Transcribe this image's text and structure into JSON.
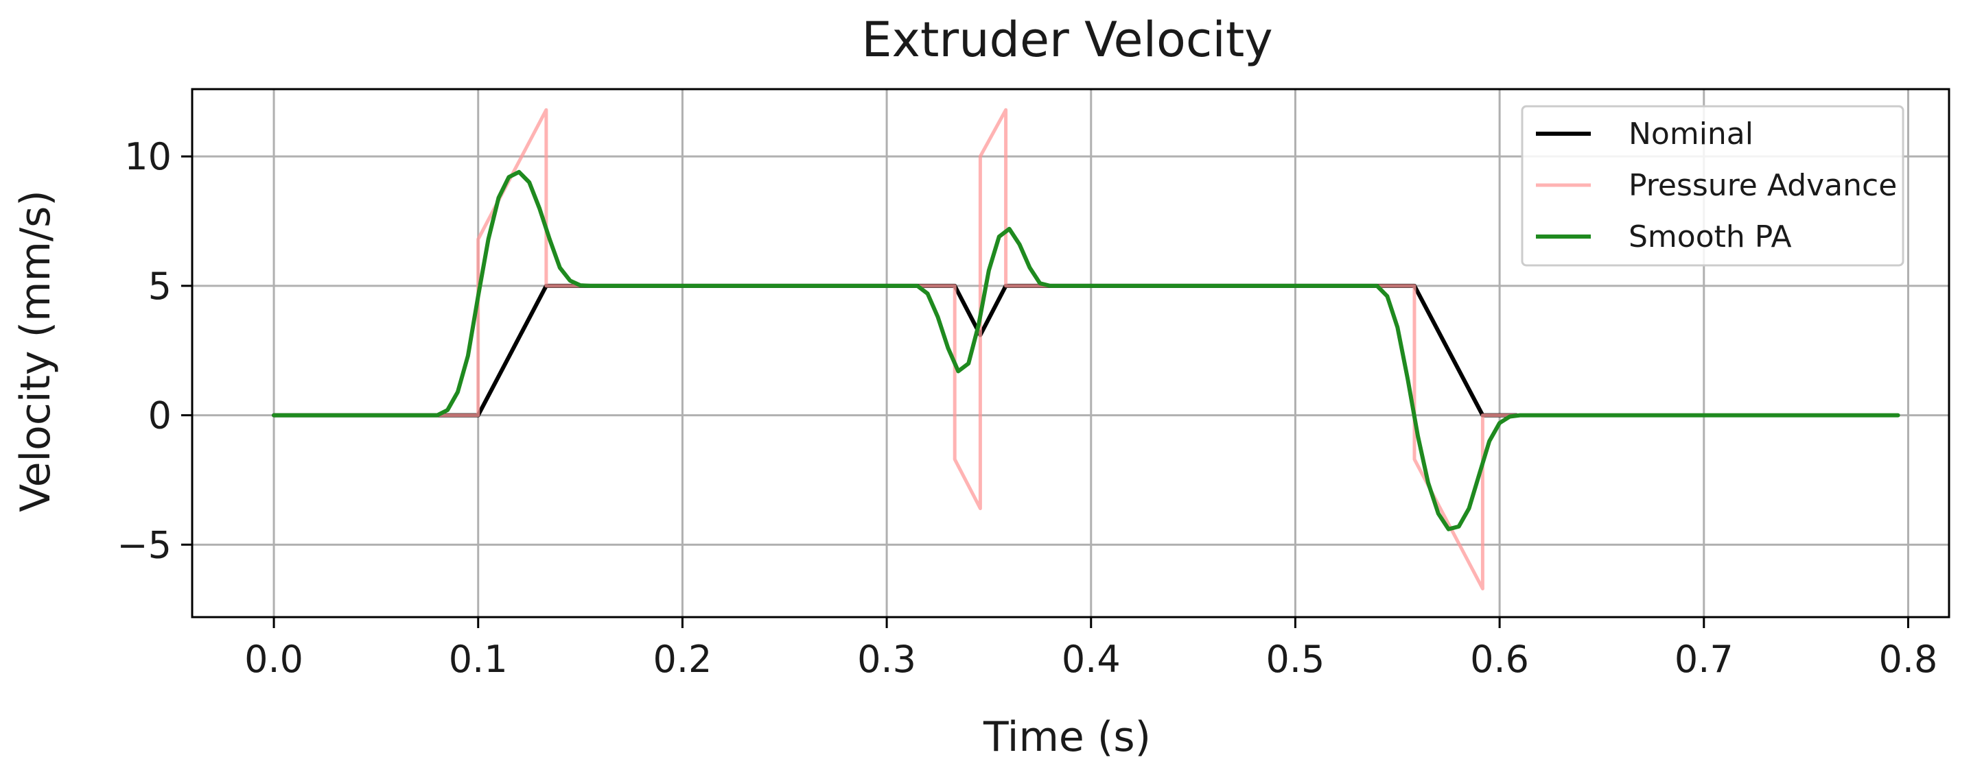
{
  "chart_data": {
    "type": "line",
    "title": "Extruder Velocity",
    "xlabel": "Time (s)",
    "ylabel": "Velocity (mm/s)",
    "xlim": [
      -0.04,
      0.82
    ],
    "ylim": [
      -7.8,
      12.6
    ],
    "xticks": [
      0.0,
      0.1,
      0.2,
      0.3,
      0.4,
      0.5,
      0.6,
      0.7,
      0.8
    ],
    "xtick_labels": [
      "0.0",
      "0.1",
      "0.2",
      "0.3",
      "0.4",
      "0.5",
      "0.6",
      "0.7",
      "0.8"
    ],
    "yticks": [
      -5,
      0,
      5,
      10
    ],
    "ytick_labels": [
      "−5",
      "0",
      "5",
      "10"
    ],
    "grid": true,
    "legend_position": "top-right",
    "series": [
      {
        "name": "Nominal",
        "color": "#000000",
        "x": [
          0.0,
          0.1,
          0.1333,
          0.3333,
          0.3458,
          0.3583,
          0.5583,
          0.5917,
          0.6083
        ],
        "y": [
          0,
          0,
          5,
          5,
          3.1,
          5,
          5,
          0,
          0
        ]
      },
      {
        "name": "Pressure Advance",
        "color": "#ff9999",
        "x": [
          0.0,
          0.1,
          0.1,
          0.1333,
          0.1333,
          0.3333,
          0.3333,
          0.3458,
          0.3458,
          0.3583,
          0.3583,
          0.5583,
          0.5583,
          0.5917,
          0.5917,
          0.6083
        ],
        "y": [
          0,
          0,
          6.8,
          11.8,
          5,
          5,
          -1.7,
          -3.6,
          10.0,
          11.8,
          5,
          5,
          -1.7,
          -6.7,
          0,
          0
        ]
      },
      {
        "name": "Smooth PA",
        "color": "#1f8a1f",
        "x": [
          0.0,
          0.08,
          0.085,
          0.09,
          0.095,
          0.1,
          0.105,
          0.11,
          0.115,
          0.12,
          0.125,
          0.13,
          0.135,
          0.14,
          0.145,
          0.15,
          0.155,
          0.16,
          0.2,
          0.3,
          0.315,
          0.32,
          0.325,
          0.33,
          0.335,
          0.34,
          0.345,
          0.35,
          0.355,
          0.36,
          0.365,
          0.37,
          0.375,
          0.38,
          0.4,
          0.5,
          0.54,
          0.545,
          0.55,
          0.555,
          0.56,
          0.565,
          0.57,
          0.575,
          0.58,
          0.585,
          0.59,
          0.595,
          0.6,
          0.605,
          0.61,
          0.7,
          0.795
        ],
        "y": [
          0,
          0,
          0.2,
          0.9,
          2.3,
          4.6,
          6.8,
          8.4,
          9.2,
          9.4,
          9.0,
          8.0,
          6.8,
          5.7,
          5.2,
          5.02,
          5.0,
          5.0,
          5.0,
          5.0,
          5.0,
          4.7,
          3.8,
          2.6,
          1.7,
          2.0,
          3.5,
          5.6,
          6.9,
          7.2,
          6.6,
          5.7,
          5.1,
          5.0,
          5.0,
          5.0,
          5.0,
          4.6,
          3.4,
          1.4,
          -0.8,
          -2.6,
          -3.8,
          -4.4,
          -4.3,
          -3.6,
          -2.3,
          -1.0,
          -0.3,
          -0.05,
          0,
          0,
          0
        ]
      }
    ]
  }
}
